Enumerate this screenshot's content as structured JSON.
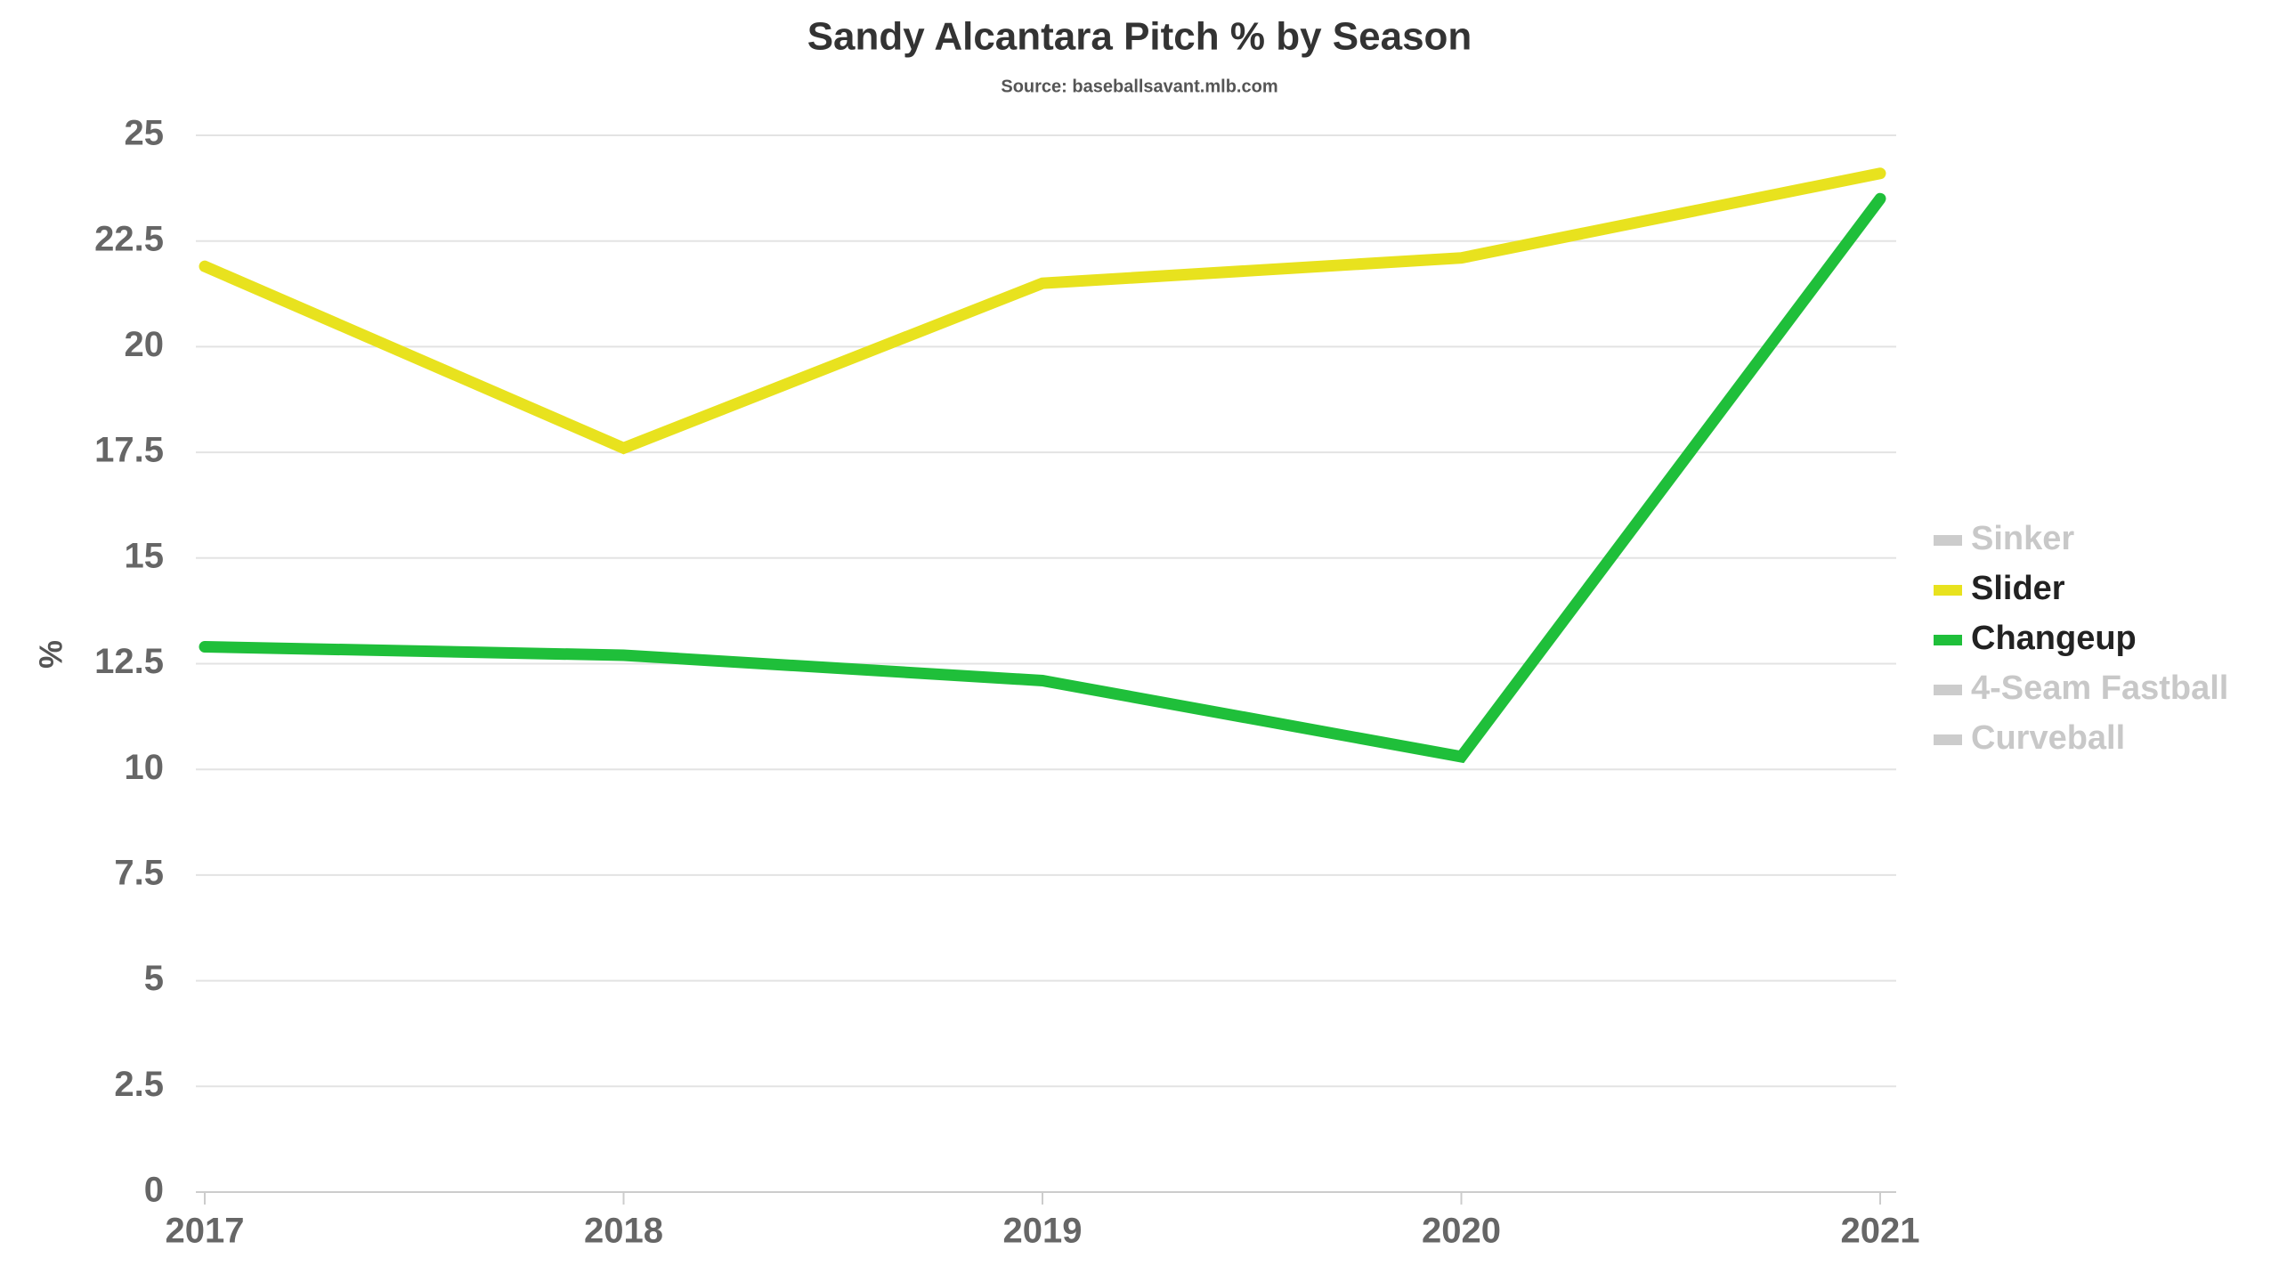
{
  "chart_data": {
    "type": "line",
    "title": "Sandy Alcantara Pitch % by Season",
    "subtitle": "Source: baseballsavant.mlb.com",
    "y_label": "%",
    "categories": [
      "2017",
      "2018",
      "2019",
      "2020",
      "2021"
    ],
    "series": [
      {
        "name": "Sinker",
        "color": "#cccccc",
        "visible": false,
        "values": [
          null,
          null,
          null,
          null,
          null
        ]
      },
      {
        "name": "Slider",
        "color": "#e8e21e",
        "visible": true,
        "values": [
          21.9,
          17.6,
          21.5,
          22.1,
          24.1
        ]
      },
      {
        "name": "Changeup",
        "color": "#1fbf3a",
        "visible": true,
        "values": [
          12.9,
          12.7,
          12.1,
          10.3,
          23.5
        ]
      },
      {
        "name": "4-Seam Fastball",
        "color": "#cccccc",
        "visible": false,
        "values": [
          null,
          null,
          null,
          null,
          null
        ]
      },
      {
        "name": "Curveball",
        "color": "#cccccc",
        "visible": false,
        "values": [
          null,
          null,
          null,
          null,
          null
        ]
      }
    ],
    "ylim": [
      0,
      25
    ],
    "yticks": [
      0,
      2.5,
      5,
      7.5,
      10,
      12.5,
      15,
      17.5,
      20,
      22.5,
      25
    ],
    "grid": true,
    "legend": "right"
  }
}
